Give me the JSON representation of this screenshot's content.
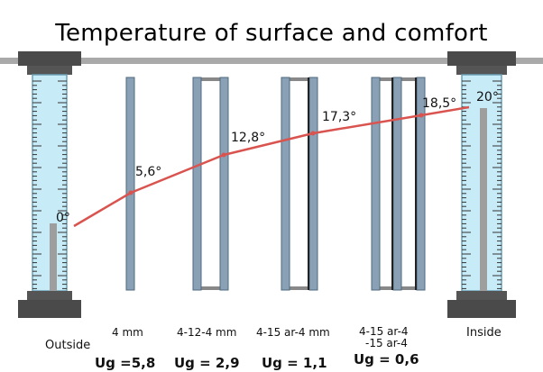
{
  "title": "Temperature of surface and comfort",
  "left_label": "Outside",
  "right_label": "Inside",
  "temperatures": {
    "outside": "0°",
    "p1": "5,6°",
    "p2": "12,8°",
    "p3": "17,3°",
    "p4": "18,5°",
    "inside": "20°"
  },
  "glazing": [
    {
      "label": "4 mm",
      "ug": "Ug =5,8"
    },
    {
      "label": "4-12-4 mm",
      "ug": "Ug = 2,9"
    },
    {
      "label": "4-15 ar-4 mm",
      "ug": "Ug = 1,1"
    },
    {
      "label_line1": "4-15 ar-4",
      "label_line2": "-15 ar-4",
      "ug": "Ug = 0,6"
    }
  ],
  "colors": {
    "line": "#d9534f",
    "glass": "#8aa0b4",
    "tube": "#c8ecf7",
    "cap": "#4a4a4a",
    "mercury": "#9e9e9e"
  }
}
